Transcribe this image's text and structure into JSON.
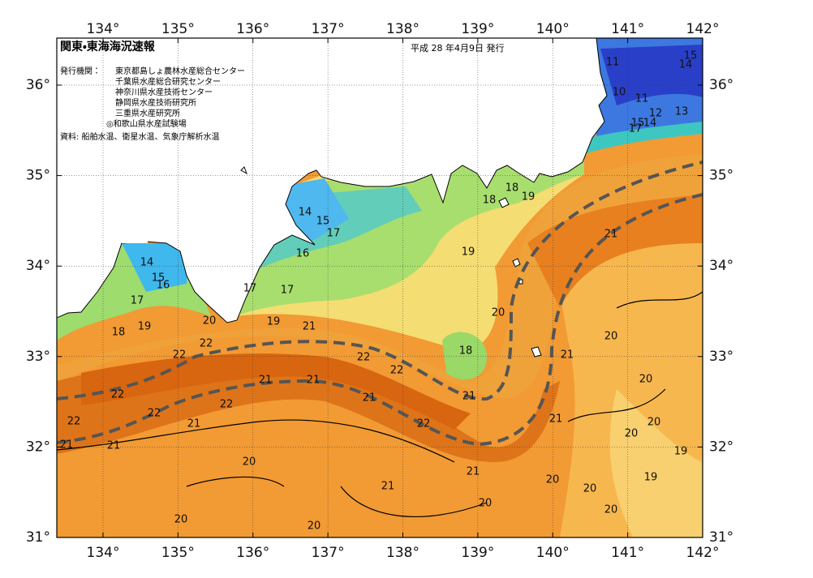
{
  "header": {
    "title": "関東・東海海況速報",
    "date": "平成 28 年4月9日 発行",
    "publisher_label": "発行機関：",
    "publishers": [
      "東京都島しょ農林水産総合センター",
      "千葉県水産総合研究センター",
      "神奈川県水産技術センター",
      "静岡県水産技術研究所",
      "三重県水産研究所",
      "◎和歌山県水産試験場"
    ],
    "source": "資料: 船舶水温、衛星水温、気象庁解析水温"
  },
  "map": {
    "lon_ticks": [
      {
        "value": 134,
        "label": "134°"
      },
      {
        "value": 135,
        "label": "135°"
      },
      {
        "value": 136,
        "label": "136°"
      },
      {
        "value": 137,
        "label": "137°"
      },
      {
        "value": 138,
        "label": "138°"
      },
      {
        "value": 139,
        "label": "139°"
      },
      {
        "value": 140,
        "label": "140°"
      },
      {
        "value": 141,
        "label": "141°"
      },
      {
        "value": 142,
        "label": "142°"
      }
    ],
    "lat_ticks": [
      {
        "value": 36,
        "label": "36°"
      },
      {
        "value": 35,
        "label": "35°"
      },
      {
        "value": 34,
        "label": "34°"
      },
      {
        "value": 33,
        "label": "33°"
      },
      {
        "value": 32,
        "label": "32°"
      },
      {
        "value": 31,
        "label": "31°"
      }
    ],
    "contour_labels": [
      11,
      15,
      14,
      10,
      11,
      12,
      13,
      15,
      14,
      17,
      18,
      18,
      19,
      14,
      15,
      17,
      16,
      21,
      19,
      14,
      15,
      16,
      17,
      17,
      17,
      20,
      18,
      19,
      20,
      19,
      21,
      20,
      22,
      22,
      22,
      21,
      18,
      22,
      21,
      21,
      20,
      22,
      21,
      21,
      22,
      22,
      21,
      22,
      21,
      22,
      20,
      20,
      21,
      21,
      19,
      20,
      21,
      20,
      19,
      20,
      21,
      20,
      20,
      20,
      20
    ]
  }
}
